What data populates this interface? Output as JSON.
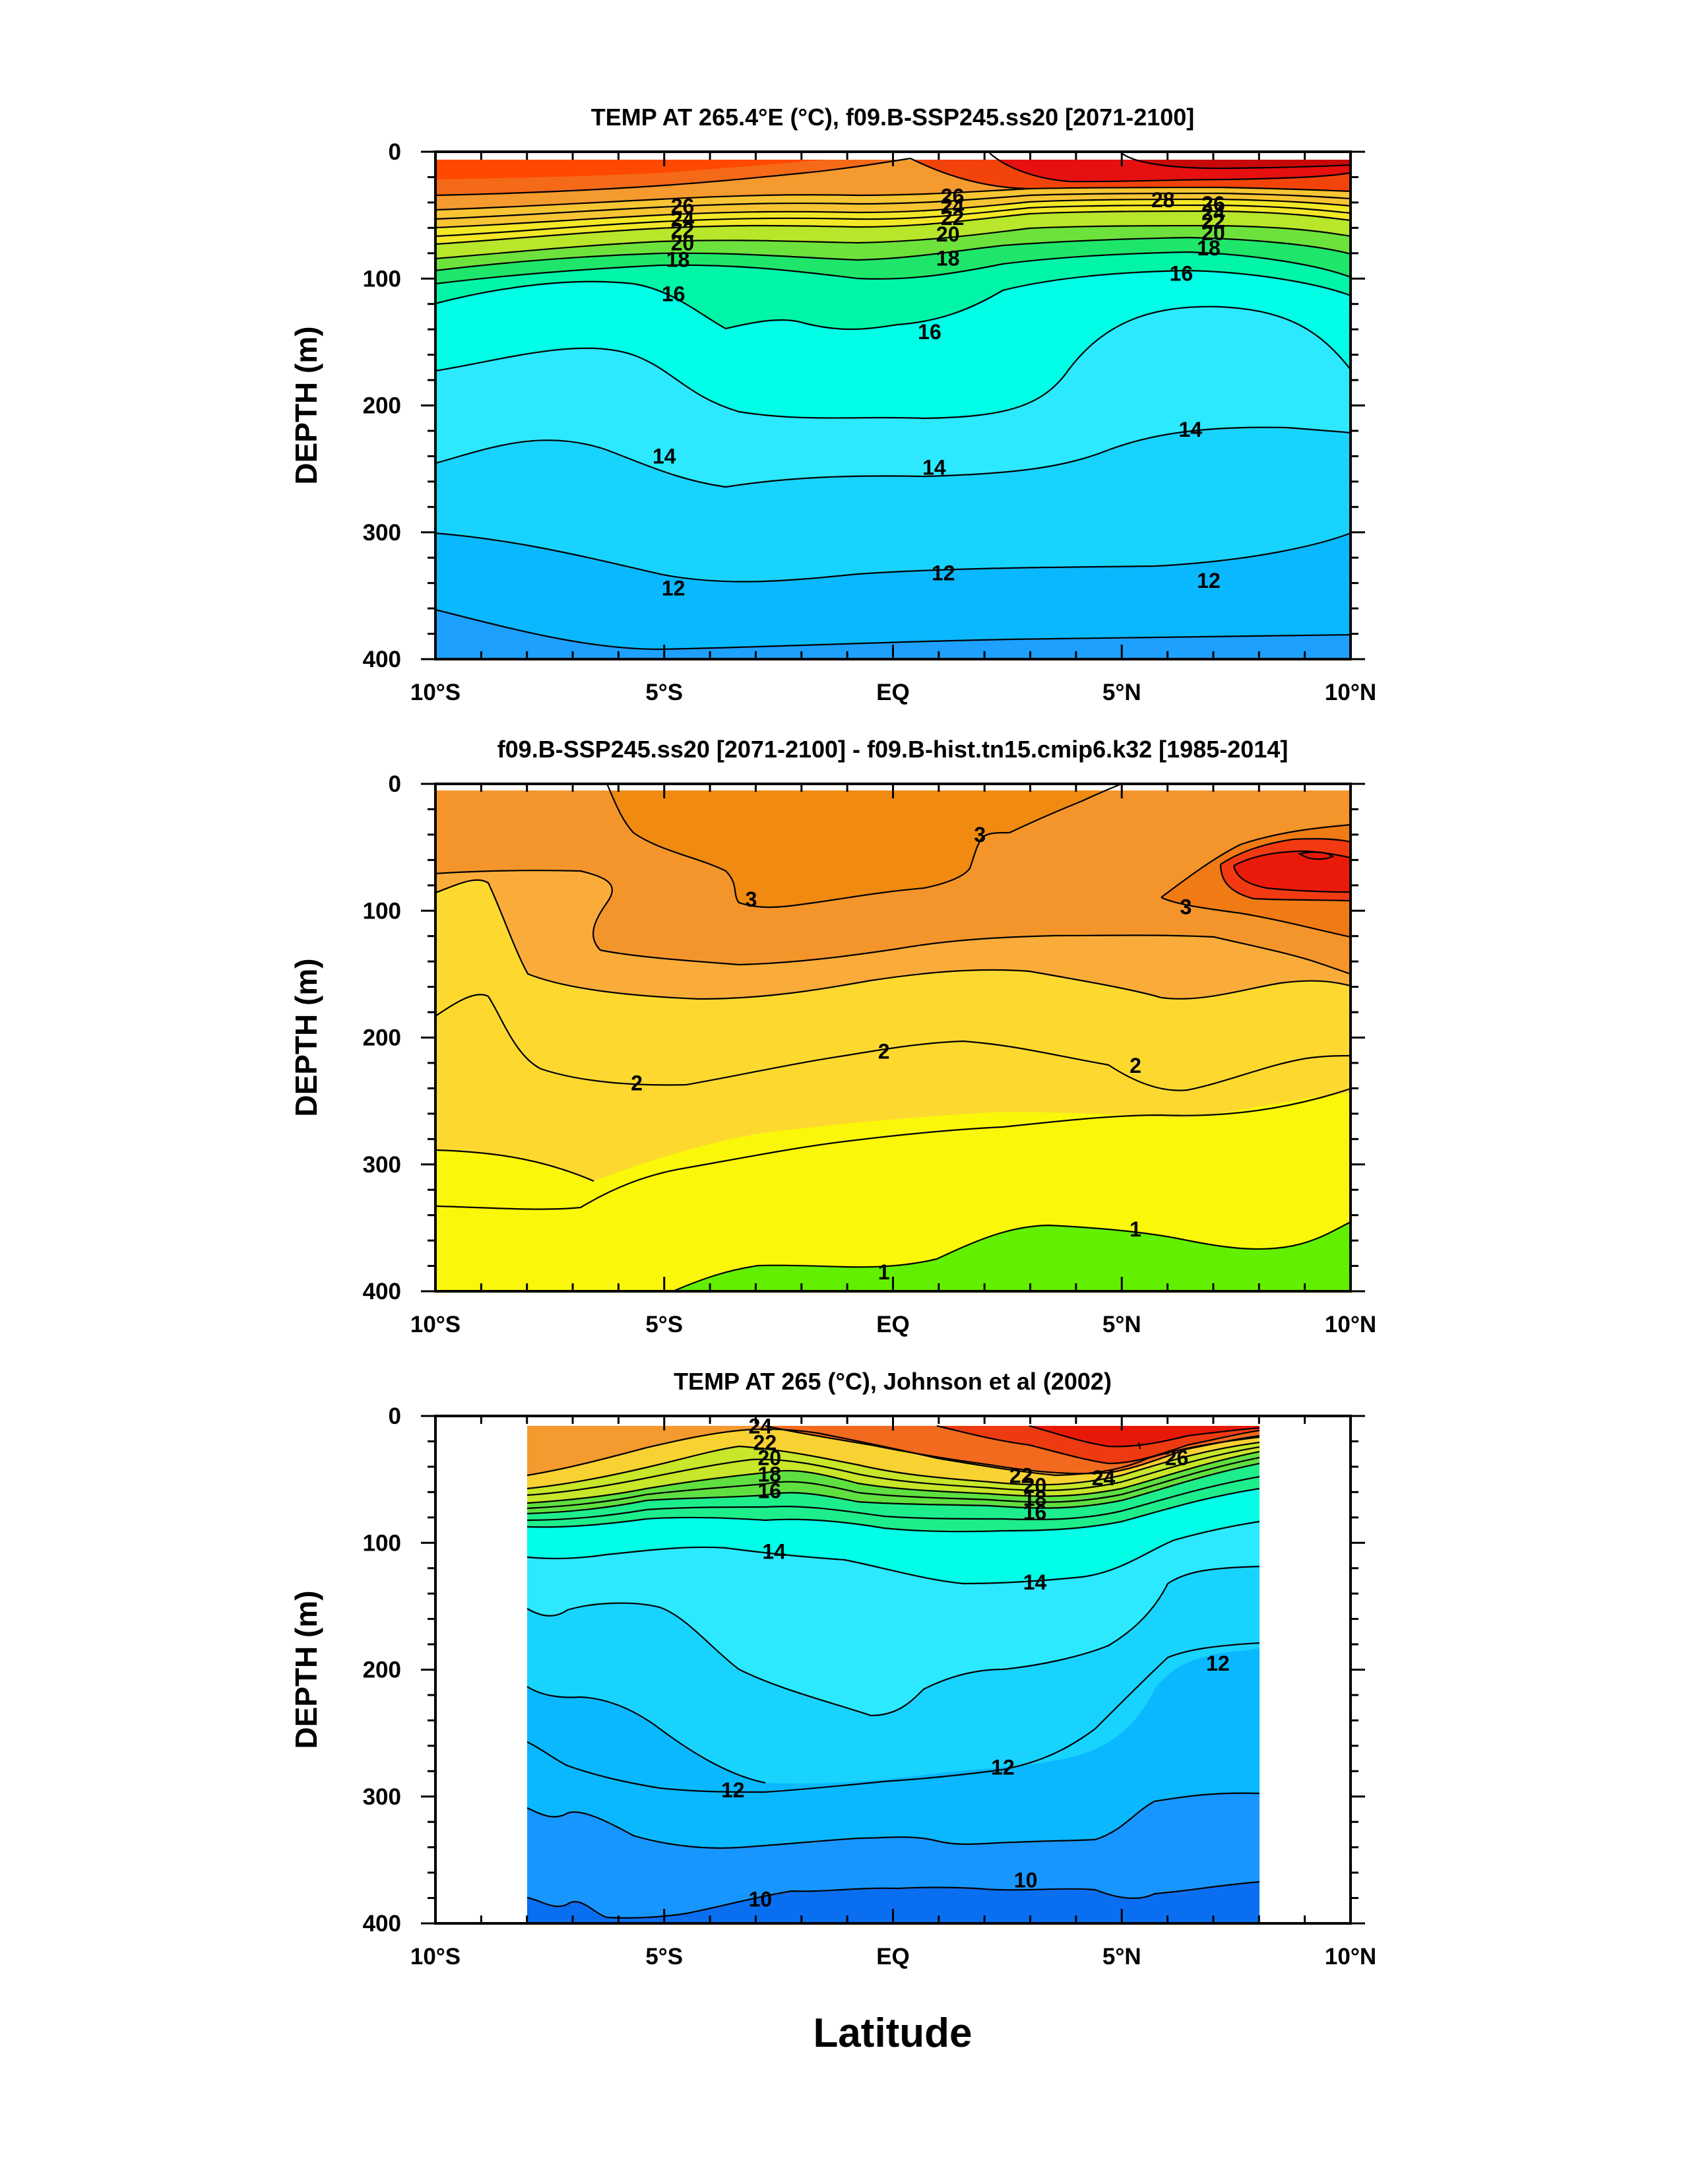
{
  "xlabel": "Latitude",
  "chart_data": [
    {
      "type": "contour",
      "title": "TEMP AT 265.4°E (°C), f09.B-SSP245.ss20 [2071-2100]",
      "xlabel": "Latitude",
      "ylabel": "DEPTH (m)",
      "xlim": [
        -10,
        10
      ],
      "ylim": [
        400,
        0
      ],
      "xticks": [
        "10°S",
        "5°S",
        "EQ",
        "5°N",
        "10°N"
      ],
      "yticks": [
        "0",
        "100",
        "200",
        "300",
        "400"
      ],
      "contour_labels": [
        {
          "text": "26",
          "x": -4.6,
          "y": 43
        },
        {
          "text": "24",
          "x": -4.6,
          "y": 53
        },
        {
          "text": "22",
          "x": -4.6,
          "y": 62
        },
        {
          "text": "20",
          "x": -4.6,
          "y": 72
        },
        {
          "text": "18",
          "x": -4.7,
          "y": 85
        },
        {
          "text": "26",
          "x": 1.3,
          "y": 35
        },
        {
          "text": "24",
          "x": 1.3,
          "y": 43
        },
        {
          "text": "22",
          "x": 1.3,
          "y": 52
        },
        {
          "text": "20",
          "x": 1.2,
          "y": 65
        },
        {
          "text": "18",
          "x": 1.2,
          "y": 84
        },
        {
          "text": "28",
          "x": 5.9,
          "y": 38
        },
        {
          "text": "26",
          "x": 7.0,
          "y": 41
        },
        {
          "text": "24",
          "x": 7.0,
          "y": 48
        },
        {
          "text": "22",
          "x": 7.0,
          "y": 55
        },
        {
          "text": "20",
          "x": 7.0,
          "y": 64
        },
        {
          "text": "18",
          "x": 6.9,
          "y": 76
        },
        {
          "text": "16",
          "x": 6.3,
          "y": 96
        },
        {
          "text": "16",
          "x": -4.8,
          "y": 112
        },
        {
          "text": "16",
          "x": 0.8,
          "y": 142
        },
        {
          "text": "14",
          "x": -5.0,
          "y": 240
        },
        {
          "text": "14",
          "x": 0.9,
          "y": 249
        },
        {
          "text": "14",
          "x": 6.5,
          "y": 219
        },
        {
          "text": "12",
          "x": -4.8,
          "y": 344
        },
        {
          "text": "12",
          "x": 1.1,
          "y": 332
        },
        {
          "text": "12",
          "x": 6.9,
          "y": 338
        }
      ]
    },
    {
      "type": "contour",
      "title": "f09.B-SSP245.ss20 [2071-2100] - f09.B-hist.tn15.cmip6.k32 [1985-2014]",
      "xlabel": "Latitude",
      "ylabel": "DEPTH (m)",
      "xlim": [
        -10,
        10
      ],
      "ylim": [
        400,
        0
      ],
      "xticks": [
        "10°S",
        "5°S",
        "EQ",
        "5°N",
        "10°N"
      ],
      "yticks": [
        "0",
        "100",
        "200",
        "300",
        "400"
      ],
      "contour_labels": [
        {
          "text": "3",
          "x": 1.9,
          "y": 40
        },
        {
          "text": "3",
          "x": -3.1,
          "y": 91
        },
        {
          "text": "3",
          "x": 6.4,
          "y": 97
        },
        {
          "text": "2",
          "x": -5.6,
          "y": 236
        },
        {
          "text": "2",
          "x": -0.2,
          "y": 211
        },
        {
          "text": "2",
          "x": 5.3,
          "y": 222
        },
        {
          "text": "1",
          "x": -0.2,
          "y": 385
        },
        {
          "text": "1",
          "x": 5.3,
          "y": 351
        }
      ]
    },
    {
      "type": "contour",
      "title": "TEMP AT 265 (°C), Johnson et al (2002)",
      "xlabel": "Latitude",
      "ylabel": "DEPTH (m)",
      "xlim": [
        -10,
        10
      ],
      "ylim": [
        400,
        0
      ],
      "data_xrange": [
        -8,
        8
      ],
      "xticks": [
        "10°S",
        "5°S",
        "EQ",
        "5°N",
        "10°N"
      ],
      "yticks": [
        "0",
        "100",
        "200",
        "300",
        "400"
      ],
      "contour_labels": [
        {
          "text": "24",
          "x": -2.9,
          "y": 8
        },
        {
          "text": "22",
          "x": -2.8,
          "y": 21
        },
        {
          "text": "20",
          "x": -2.7,
          "y": 33
        },
        {
          "text": "18",
          "x": -2.7,
          "y": 46
        },
        {
          "text": "16",
          "x": -2.7,
          "y": 59
        },
        {
          "text": "22",
          "x": 2.8,
          "y": 47
        },
        {
          "text": "20",
          "x": 3.1,
          "y": 55
        },
        {
          "text": "18",
          "x": 3.1,
          "y": 65
        },
        {
          "text": "16",
          "x": 3.1,
          "y": 76
        },
        {
          "text": "24",
          "x": 4.6,
          "y": 49
        },
        {
          "text": "26",
          "x": 6.2,
          "y": 33
        },
        {
          "text": "14",
          "x": -2.6,
          "y": 107
        },
        {
          "text": "14",
          "x": 3.1,
          "y": 131
        },
        {
          "text": "12",
          "x": 7.1,
          "y": 195
        },
        {
          "text": "12",
          "x": 2.4,
          "y": 277
        },
        {
          "text": "12",
          "x": -3.5,
          "y": 295
        },
        {
          "text": "10",
          "x": -2.9,
          "y": 381
        },
        {
          "text": "10",
          "x": 2.9,
          "y": 366
        }
      ]
    }
  ]
}
